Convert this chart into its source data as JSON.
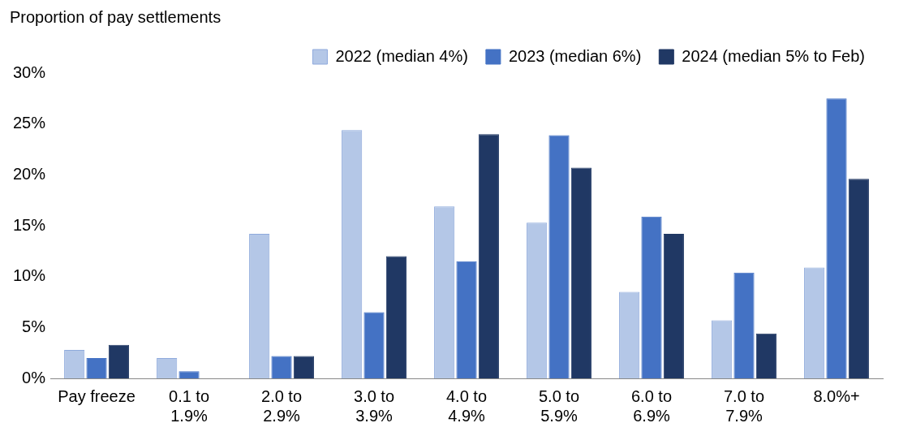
{
  "chart_data": {
    "type": "bar",
    "ylabel": "Proportion of pay settlements",
    "categories": [
      "Pay freeze",
      "0.1 to\n1.9%",
      "2.0 to\n2.9%",
      "3.0 to\n3.9%",
      "4.0 to\n4.9%",
      "5.0 to\n5.9%",
      "6.0 to\n6.9%",
      "7.0 to\n7.9%",
      "8.0%+"
    ],
    "series": [
      {
        "name": "2022 (median 4%)",
        "color": "#b4c7e7",
        "values": [
          2.8,
          2.0,
          14.2,
          24.4,
          16.9,
          15.3,
          8.5,
          5.7,
          10.9
        ]
      },
      {
        "name": "2023 (median 6%)",
        "color": "#4472c4",
        "values": [
          2.0,
          0.7,
          2.2,
          6.5,
          11.5,
          23.9,
          15.9,
          10.4,
          27.5
        ]
      },
      {
        "name": "2024 (median 5% to Feb)",
        "color": "#203864",
        "values": [
          3.3,
          0,
          2.2,
          12.0,
          24.0,
          20.7,
          14.2,
          4.4,
          19.6
        ]
      }
    ],
    "ylim": [
      0,
      30
    ],
    "yticks": [
      {
        "value": 0,
        "label": "0%"
      },
      {
        "value": 5,
        "label": "5%"
      },
      {
        "value": 10,
        "label": "10%"
      },
      {
        "value": 15,
        "label": "15%"
      },
      {
        "value": 20,
        "label": "20%"
      },
      {
        "value": 25,
        "label": "25%"
      },
      {
        "value": 30,
        "label": "30%"
      }
    ],
    "grid": false,
    "legend": "top"
  }
}
